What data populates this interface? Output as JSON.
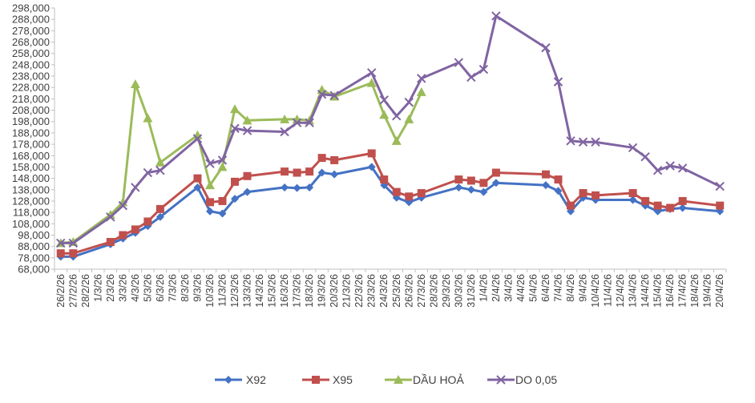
{
  "chart_data": {
    "type": "line",
    "title": "",
    "xlabel": "",
    "ylabel": "",
    "ylim": [
      68000,
      298000
    ],
    "yticks": [
      "68,000",
      "78,000",
      "88,000",
      "98,000",
      "108,000",
      "118,000",
      "128,000",
      "138,000",
      "148,000",
      "158,000",
      "168,000",
      "178,000",
      "188,000",
      "198,000",
      "208,000",
      "218,000",
      "228,000",
      "238,000",
      "248,000",
      "258,000",
      "268,000",
      "278,000",
      "288,000",
      "298,000"
    ],
    "categories": [
      "26/2/26",
      "27/2/26",
      "28/2/26",
      "1/3/26",
      "2/3/26",
      "3/3/26",
      "4/3/26",
      "5/3/26",
      "6/3/26",
      "7/3/26",
      "8/3/26",
      "9/3/26",
      "10/3/26",
      "11/3/26",
      "12/3/26",
      "13/3/26",
      "14/3/26",
      "15/3/26",
      "16/3/26",
      "17/3/26",
      "18/3/26",
      "19/3/26",
      "20/3/26",
      "21/3/26",
      "22/3/26",
      "23/3/26",
      "24/3/26",
      "25/3/26",
      "26/3/26",
      "27/3/26",
      "28/3/26",
      "29/3/26",
      "30/3/26",
      "31/3/26",
      "1/4/26",
      "2/4/26",
      "3/4/26",
      "4/4/26",
      "5/4/26",
      "6/4/26",
      "7/4/26",
      "8/4/26",
      "9/4/26",
      "10/4/26",
      "11/4/26",
      "12/4/26",
      "13/4/26",
      "14/4/26",
      "15/4/26",
      "16/4/26",
      "17/4/26",
      "18/4/26",
      "19/4/26",
      "20/4/26"
    ],
    "series": [
      {
        "name": "X92",
        "color": "#4472C4",
        "marker": "diamond",
        "points": [
          [
            "26/2/26",
            79000
          ],
          [
            "27/2/26",
            79000
          ],
          [
            "2/3/26",
            90000
          ],
          [
            "3/3/26",
            95000
          ],
          [
            "4/3/26",
            100000
          ],
          [
            "5/3/26",
            106000
          ],
          [
            "6/3/26",
            114000
          ],
          [
            "9/3/26",
            140000
          ],
          [
            "10/3/26",
            119000
          ],
          [
            "11/3/26",
            117000
          ],
          [
            "12/3/26",
            130000
          ],
          [
            "13/3/26",
            136000
          ],
          [
            "16/3/26",
            140000
          ],
          [
            "17/3/26",
            139500
          ],
          [
            "18/3/26",
            140000
          ],
          [
            "19/3/26",
            153000
          ],
          [
            "20/3/26",
            151500
          ],
          [
            "23/3/26",
            158000
          ],
          [
            "24/3/26",
            142000
          ],
          [
            "25/3/26",
            131000
          ],
          [
            "26/3/26",
            127000
          ],
          [
            "27/3/26",
            131000
          ],
          [
            "30/3/26",
            140000
          ],
          [
            "31/3/26",
            138000
          ],
          [
            "1/4/26",
            136000
          ],
          [
            "2/4/26",
            144000
          ],
          [
            "6/4/26",
            142000
          ],
          [
            "7/4/26",
            137000
          ],
          [
            "8/4/26",
            119000
          ],
          [
            "9/4/26",
            131000
          ],
          [
            "10/4/26",
            129000
          ],
          [
            "13/4/26",
            129000
          ],
          [
            "14/4/26",
            124000
          ],
          [
            "15/4/26",
            119000
          ],
          [
            "16/4/26",
            121000
          ],
          [
            "17/4/26",
            122000
          ],
          [
            "20/4/26",
            119000
          ]
        ]
      },
      {
        "name": "X95",
        "color": "#C0504D",
        "marker": "square",
        "points": [
          [
            "26/2/26",
            82000
          ],
          [
            "27/2/26",
            82000
          ],
          [
            "2/3/26",
            92000
          ],
          [
            "3/3/26",
            98000
          ],
          [
            "4/3/26",
            103000
          ],
          [
            "5/3/26",
            110000
          ],
          [
            "6/3/26",
            121000
          ],
          [
            "9/3/26",
            148000
          ],
          [
            "10/3/26",
            127000
          ],
          [
            "11/3/26",
            128000
          ],
          [
            "12/3/26",
            145000
          ],
          [
            "13/3/26",
            150000
          ],
          [
            "16/3/26",
            154000
          ],
          [
            "17/3/26",
            153000
          ],
          [
            "18/3/26",
            154000
          ],
          [
            "19/3/26",
            166000
          ],
          [
            "20/3/26",
            164000
          ],
          [
            "23/3/26",
            170000
          ],
          [
            "24/3/26",
            147000
          ],
          [
            "25/3/26",
            136000
          ],
          [
            "26/3/26",
            132000
          ],
          [
            "27/3/26",
            135000
          ],
          [
            "30/3/26",
            147000
          ],
          [
            "31/3/26",
            146000
          ],
          [
            "1/4/26",
            144000
          ],
          [
            "2/4/26",
            153000
          ],
          [
            "6/4/26",
            151500
          ],
          [
            "7/4/26",
            147000
          ],
          [
            "8/4/26",
            124000
          ],
          [
            "9/4/26",
            135000
          ],
          [
            "10/4/26",
            133000
          ],
          [
            "13/4/26",
            135000
          ],
          [
            "14/4/26",
            128000
          ],
          [
            "15/4/26",
            124000
          ],
          [
            "16/4/26",
            122000
          ],
          [
            "17/4/26",
            128000
          ],
          [
            "20/4/26",
            124000
          ]
        ]
      },
      {
        "name": "DẦU HOẢ",
        "color": "#9BBB59",
        "marker": "triangle",
        "points": [
          [
            "26/2/26",
            91000
          ],
          [
            "27/2/26",
            92000
          ],
          [
            "2/3/26",
            116000
          ],
          [
            "3/3/26",
            127000
          ],
          [
            "4/3/26",
            231000
          ],
          [
            "5/3/26",
            201000
          ],
          [
            "6/3/26",
            162000
          ],
          [
            "9/3/26",
            186000
          ],
          [
            "10/3/26",
            142000
          ],
          [
            "11/3/26",
            158000
          ],
          [
            "12/3/26",
            209000
          ],
          [
            "13/3/26",
            199000
          ],
          [
            "16/3/26",
            200000
          ],
          [
            "17/3/26",
            200000
          ],
          [
            "18/3/26",
            199000
          ],
          [
            "19/3/26",
            226000
          ],
          [
            "20/3/26",
            220000
          ],
          [
            "23/3/26",
            232000
          ],
          [
            "24/3/26",
            204000
          ],
          [
            "25/3/26",
            181000
          ],
          [
            "26/3/26",
            200000
          ],
          [
            "27/3/26",
            224000
          ]
        ]
      },
      {
        "name": "DO 0,05",
        "color": "#8064A2",
        "marker": "x",
        "points": [
          [
            "26/2/26",
            91000
          ],
          [
            "27/2/26",
            91000
          ],
          [
            "2/3/26",
            114000
          ],
          [
            "3/3/26",
            124000
          ],
          [
            "4/3/26",
            140000
          ],
          [
            "5/3/26",
            153000
          ],
          [
            "6/3/26",
            155000
          ],
          [
            "9/3/26",
            183000
          ],
          [
            "10/3/26",
            161000
          ],
          [
            "11/3/26",
            164000
          ],
          [
            "12/3/26",
            192000
          ],
          [
            "13/3/26",
            190000
          ],
          [
            "16/3/26",
            189000
          ],
          [
            "17/3/26",
            197000
          ],
          [
            "18/3/26",
            197000
          ],
          [
            "19/3/26",
            222000
          ],
          [
            "20/3/26",
            221000
          ],
          [
            "23/3/26",
            241000
          ],
          [
            "24/3/26",
            217000
          ],
          [
            "25/3/26",
            203000
          ],
          [
            "26/3/26",
            215000
          ],
          [
            "27/3/26",
            236000
          ],
          [
            "30/3/26",
            250000
          ],
          [
            "31/3/26",
            237000
          ],
          [
            "1/4/26",
            244000
          ],
          [
            "2/4/26",
            291000
          ],
          [
            "6/4/26",
            263000
          ],
          [
            "7/4/26",
            233000
          ],
          [
            "8/4/26",
            181000
          ],
          [
            "9/4/26",
            180000
          ],
          [
            "10/4/26",
            180000
          ],
          [
            "13/4/26",
            175000
          ],
          [
            "14/4/26",
            167000
          ],
          [
            "15/4/26",
            155000
          ],
          [
            "16/4/26",
            159000
          ],
          [
            "17/4/26",
            157000
          ],
          [
            "20/4/26",
            141000
          ]
        ]
      }
    ],
    "legend_position": "bottom",
    "grid": false
  }
}
